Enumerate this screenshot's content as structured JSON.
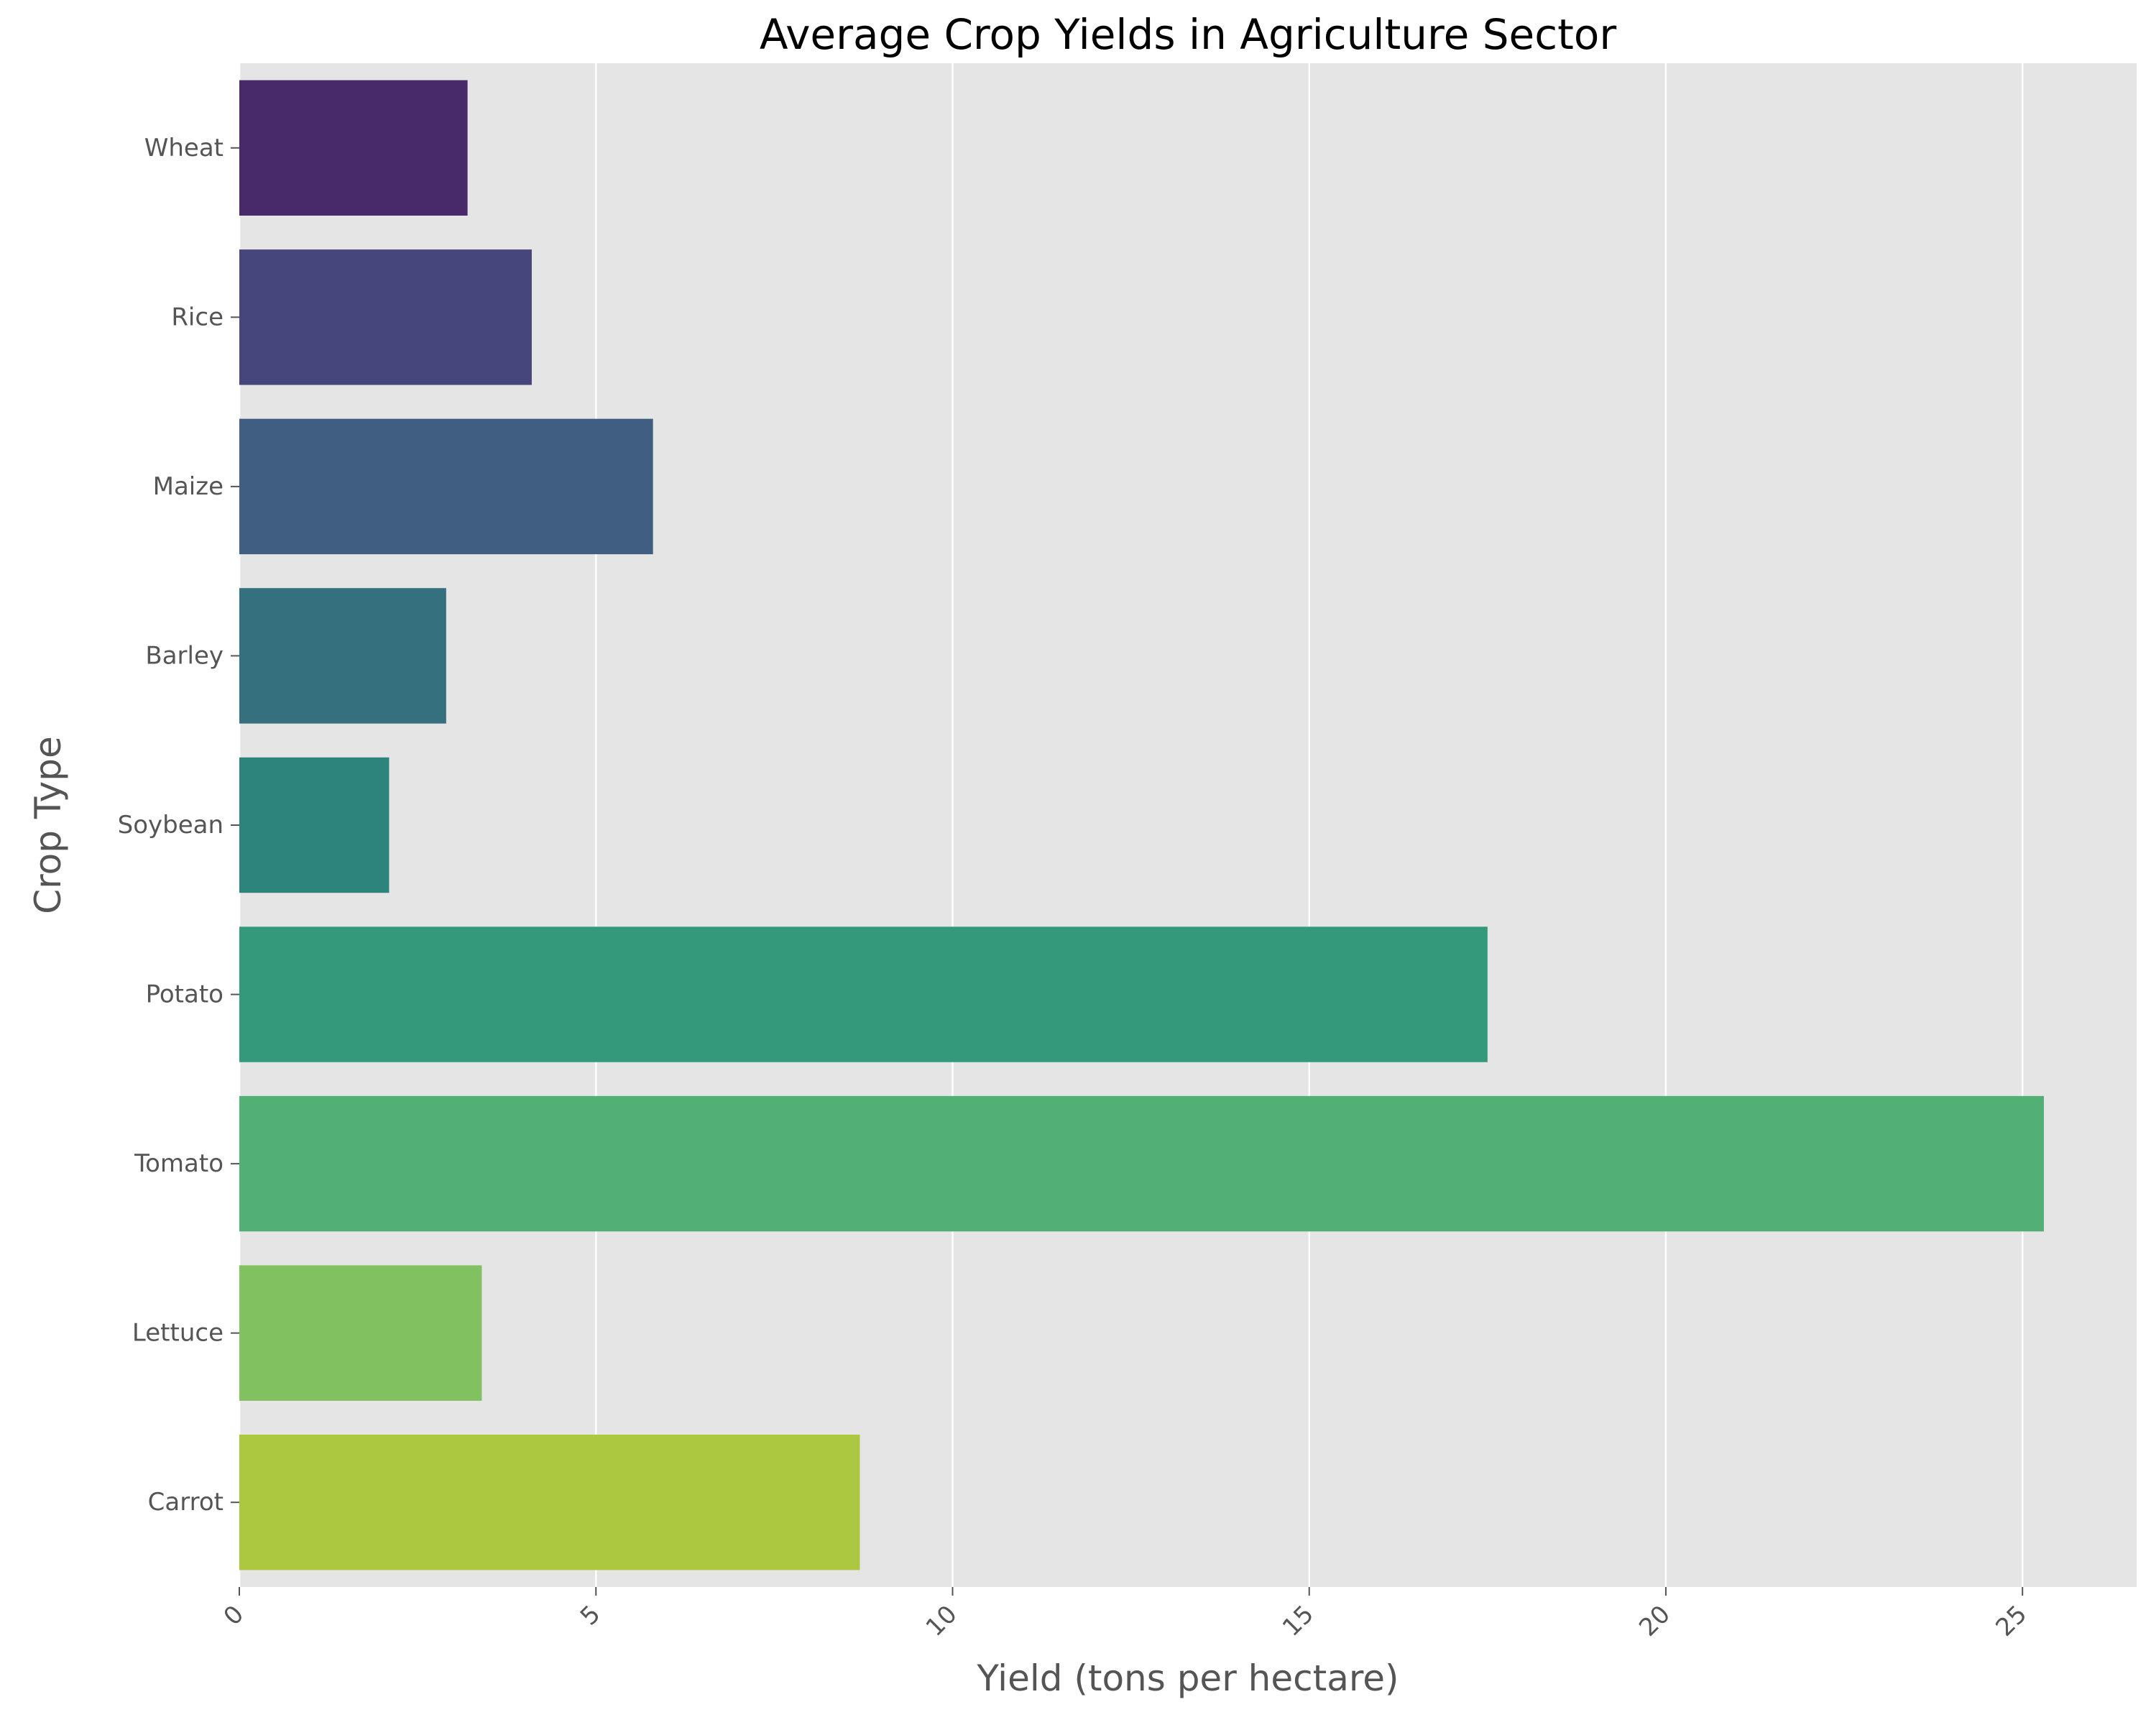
{
  "chart_data": {
    "type": "bar",
    "orientation": "horizontal",
    "title": "Average Crop Yields in Agriculture Sector",
    "xlabel": "Yield (tons per hectare)",
    "ylabel": "Crop Type",
    "categories": [
      "Wheat",
      "Rice",
      "Maize",
      "Barley",
      "Soybean",
      "Potato",
      "Tomato",
      "Lettuce",
      "Carrot"
    ],
    "values": [
      3.2,
      4.1,
      5.8,
      2.9,
      2.1,
      17.5,
      25.3,
      3.4,
      8.7
    ],
    "xlim": [
      0,
      26.6
    ],
    "xticks": [
      0,
      5,
      10,
      15,
      20,
      25
    ],
    "grid": true,
    "background": "#e5e5e5",
    "colors": [
      "#482a6b",
      "#47467c",
      "#3f5e81",
      "#35707f",
      "#2d847d",
      "#34997b",
      "#53b075",
      "#81c160",
      "#acc841"
    ]
  }
}
